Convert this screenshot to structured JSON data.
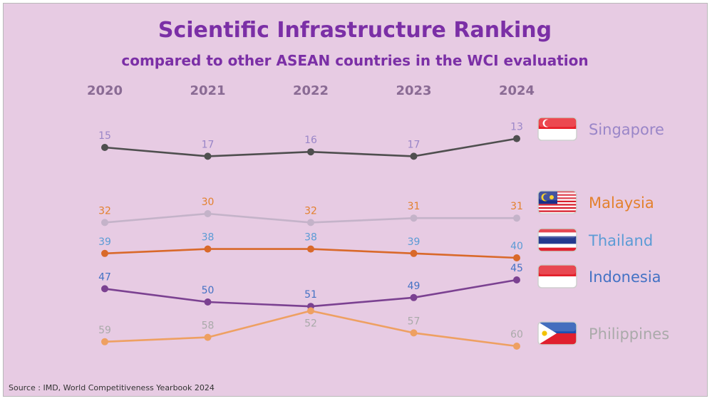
{
  "title": "Scientific Infrastructure Ranking",
  "subtitle": "compared to other ASEAN countries in the WCI evaluation",
  "source": "Source : IMD, World Competitiveness Yearbook 2024",
  "chart_data": {
    "type": "line",
    "title": "Scientific Infrastructure Ranking",
    "subtitle": "compared to other ASEAN countries in the WCI evaluation",
    "x": [
      "2020",
      "2021",
      "2022",
      "2023",
      "2024"
    ],
    "y_axis": "ranking (lower is better, inverted)",
    "legend_placement": "right",
    "grid": false,
    "series": [
      {
        "name": "Singapore",
        "values": [
          15,
          17,
          16,
          17,
          13
        ],
        "line_color": "#4f4f4f",
        "label_color": "#9a86c8",
        "flag": "singapore-flag"
      },
      {
        "name": "Malaysia",
        "values": [
          32,
          30,
          32,
          31,
          31
        ],
        "line_color": "#c4b3c9",
        "label_color": "#e3812e",
        "flag": "malaysia-flag"
      },
      {
        "name": "Thailand",
        "values": [
          39,
          38,
          38,
          39,
          40
        ],
        "line_color": "#d9692a",
        "label_color": "#5b9bd5",
        "flag": "thailand-flag"
      },
      {
        "name": "Indonesia",
        "values": [
          47,
          50,
          51,
          49,
          45
        ],
        "line_color": "#7b4191",
        "label_color": "#4472c4",
        "flag": "indonesia-flag"
      },
      {
        "name": "Philippines",
        "values": [
          59,
          58,
          52,
          57,
          60
        ],
        "line_color": "#eea062",
        "label_color": "#aaaaaa",
        "flag": "philippines-flag"
      }
    ]
  }
}
